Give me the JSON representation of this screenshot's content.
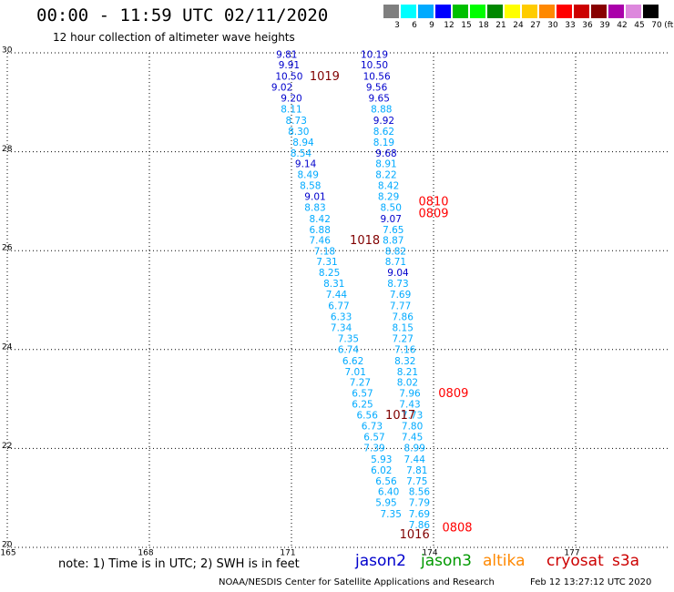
{
  "header": {
    "title": "00:00 - 11:59 UTC 02/11/2020",
    "subtitle": "12 hour collection of altimeter wave heights"
  },
  "legend": {
    "unit": "(ft)",
    "bins": [
      {
        "label": "3",
        "color": "#7f7f7f"
      },
      {
        "label": "6",
        "color": "#00ffff"
      },
      {
        "label": "9",
        "color": "#00aaff"
      },
      {
        "label": "12",
        "color": "#0000ff"
      },
      {
        "label": "15",
        "color": "#00c000"
      },
      {
        "label": "18",
        "color": "#00ff00"
      },
      {
        "label": "21",
        "color": "#008800"
      },
      {
        "label": "24",
        "color": "#ffff00"
      },
      {
        "label": "27",
        "color": "#ffcc00"
      },
      {
        "label": "30",
        "color": "#ff8800"
      },
      {
        "label": "33",
        "color": "#ff0000"
      },
      {
        "label": "36",
        "color": "#cc0000"
      },
      {
        "label": "39",
        "color": "#880000"
      },
      {
        "label": "42",
        "color": "#aa00aa"
      },
      {
        "label": "45",
        "color": "#dd88dd"
      },
      {
        "label": "70",
        "color": "#000000"
      }
    ]
  },
  "chart_data": {
    "type": "map",
    "lon_range": [
      165,
      179
    ],
    "lat_range": [
      20,
      30
    ],
    "lon_ticks": [
      165,
      168,
      171,
      174,
      177
    ],
    "lat_ticks": [
      30,
      28,
      26,
      24,
      22,
      20
    ],
    "tick_labels": {
      "lon": [
        "165",
        "168",
        "171",
        "174",
        "177"
      ],
      "lat": [
        "30",
        "28",
        "26",
        "24",
        "22",
        "20"
      ]
    },
    "grid": true,
    "colors": {
      "light": "#00aaff",
      "dark": "#0000cc",
      "time_dark": "#800000",
      "time_red": "#ff0000"
    },
    "track_left": [
      {
        "lon": 170.9,
        "lat": 29.95,
        "value": "9.81",
        "c": "dark"
      },
      {
        "lon": 170.95,
        "lat": 29.74,
        "value": "9.91",
        "c": "dark"
      },
      {
        "lon": 170.95,
        "lat": 29.51,
        "value": "10.50",
        "c": "dark"
      },
      {
        "lon": 170.8,
        "lat": 29.29,
        "value": "9.02",
        "c": "dark"
      },
      {
        "lon": 171.0,
        "lat": 29.07,
        "value": "9.20",
        "c": "dark"
      },
      {
        "lon": 171.0,
        "lat": 28.85,
        "value": "8.11",
        "c": "light"
      },
      {
        "lon": 171.1,
        "lat": 28.62,
        "value": "8.73",
        "c": "light"
      },
      {
        "lon": 171.15,
        "lat": 28.4,
        "value": "8.30",
        "c": "light"
      },
      {
        "lon": 171.25,
        "lat": 28.18,
        "value": "8.94",
        "c": "light"
      },
      {
        "lon": 171.2,
        "lat": 27.96,
        "value": "8.54",
        "c": "light"
      },
      {
        "lon": 171.3,
        "lat": 27.74,
        "value": "9.14",
        "c": "dark"
      },
      {
        "lon": 171.35,
        "lat": 27.52,
        "value": "8.49",
        "c": "light"
      },
      {
        "lon": 171.4,
        "lat": 27.3,
        "value": "8.58",
        "c": "light"
      },
      {
        "lon": 171.5,
        "lat": 27.08,
        "value": "9.01",
        "c": "dark"
      },
      {
        "lon": 171.5,
        "lat": 26.86,
        "value": "8.83",
        "c": "light"
      },
      {
        "lon": 171.6,
        "lat": 26.63,
        "value": "8.42",
        "c": "light"
      },
      {
        "lon": 171.6,
        "lat": 26.41,
        "value": "6.88",
        "c": "light"
      },
      {
        "lon": 171.6,
        "lat": 26.2,
        "value": "7.46",
        "c": "light"
      },
      {
        "lon": 171.7,
        "lat": 25.98,
        "value": "7.18",
        "c": "light"
      },
      {
        "lon": 171.75,
        "lat": 25.76,
        "value": "7.31",
        "c": "light"
      },
      {
        "lon": 171.8,
        "lat": 25.54,
        "value": "8.25",
        "c": "light"
      },
      {
        "lon": 171.9,
        "lat": 25.32,
        "value": "8.31",
        "c": "light"
      },
      {
        "lon": 171.95,
        "lat": 25.1,
        "value": "7.44",
        "c": "light"
      },
      {
        "lon": 172.0,
        "lat": 24.87,
        "value": "6.77",
        "c": "light"
      },
      {
        "lon": 172.05,
        "lat": 24.65,
        "value": "6.33",
        "c": "light"
      },
      {
        "lon": 172.05,
        "lat": 24.43,
        "value": "7.34",
        "c": "light"
      },
      {
        "lon": 172.2,
        "lat": 24.21,
        "value": "7.35",
        "c": "light"
      },
      {
        "lon": 172.2,
        "lat": 23.99,
        "value": "6.74",
        "c": "light"
      },
      {
        "lon": 172.3,
        "lat": 23.76,
        "value": "6.62",
        "c": "light"
      },
      {
        "lon": 172.35,
        "lat": 23.54,
        "value": "7.01",
        "c": "light"
      },
      {
        "lon": 172.45,
        "lat": 23.32,
        "value": "7.27",
        "c": "light"
      },
      {
        "lon": 172.5,
        "lat": 23.1,
        "value": "6.57",
        "c": "light"
      },
      {
        "lon": 172.5,
        "lat": 22.88,
        "value": "6.25",
        "c": "light"
      },
      {
        "lon": 172.6,
        "lat": 22.66,
        "value": "6.56",
        "c": "light"
      },
      {
        "lon": 172.7,
        "lat": 22.44,
        "value": "6.73",
        "c": "light"
      },
      {
        "lon": 172.75,
        "lat": 22.22,
        "value": "6.57",
        "c": "light"
      },
      {
        "lon": 172.75,
        "lat": 22.0,
        "value": "7.39",
        "c": "light"
      },
      {
        "lon": 172.9,
        "lat": 21.77,
        "value": "5.93",
        "c": "light"
      },
      {
        "lon": 172.9,
        "lat": 21.55,
        "value": "6.02",
        "c": "light"
      },
      {
        "lon": 173.0,
        "lat": 21.33,
        "value": "6.56",
        "c": "light"
      },
      {
        "lon": 173.05,
        "lat": 21.11,
        "value": "6.40",
        "c": "light"
      },
      {
        "lon": 173.0,
        "lat": 20.89,
        "value": "5.95",
        "c": "light"
      },
      {
        "lon": 173.1,
        "lat": 20.66,
        "value": "7.35",
        "c": "light"
      }
    ],
    "track_right": [
      {
        "lon": 172.75,
        "lat": 29.95,
        "value": "10.19",
        "c": "dark"
      },
      {
        "lon": 172.75,
        "lat": 29.74,
        "value": "10.50",
        "c": "dark"
      },
      {
        "lon": 172.8,
        "lat": 29.51,
        "value": "10.56",
        "c": "dark"
      },
      {
        "lon": 172.8,
        "lat": 29.29,
        "value": "9.56",
        "c": "dark"
      },
      {
        "lon": 172.85,
        "lat": 29.07,
        "value": "9.65",
        "c": "dark"
      },
      {
        "lon": 172.9,
        "lat": 28.85,
        "value": "8.88",
        "c": "light"
      },
      {
        "lon": 172.95,
        "lat": 28.62,
        "value": "9.92",
        "c": "dark"
      },
      {
        "lon": 172.95,
        "lat": 28.4,
        "value": "8.62",
        "c": "light"
      },
      {
        "lon": 172.95,
        "lat": 28.18,
        "value": "8.19",
        "c": "light"
      },
      {
        "lon": 173.0,
        "lat": 27.96,
        "value": "9.68",
        "c": "dark"
      },
      {
        "lon": 173.0,
        "lat": 27.74,
        "value": "8.91",
        "c": "light"
      },
      {
        "lon": 173.0,
        "lat": 27.52,
        "value": "8.22",
        "c": "light"
      },
      {
        "lon": 173.05,
        "lat": 27.3,
        "value": "8.42",
        "c": "light"
      },
      {
        "lon": 173.05,
        "lat": 27.08,
        "value": "8.29",
        "c": "light"
      },
      {
        "lon": 173.1,
        "lat": 26.86,
        "value": "8.50",
        "c": "light"
      },
      {
        "lon": 173.1,
        "lat": 26.63,
        "value": "9.07",
        "c": "dark"
      },
      {
        "lon": 173.15,
        "lat": 26.41,
        "value": "7.65",
        "c": "light"
      },
      {
        "lon": 173.15,
        "lat": 26.2,
        "value": "8.87",
        "c": "light"
      },
      {
        "lon": 173.2,
        "lat": 25.98,
        "value": "8.82",
        "c": "light"
      },
      {
        "lon": 173.2,
        "lat": 25.76,
        "value": "8.71",
        "c": "light"
      },
      {
        "lon": 173.25,
        "lat": 25.54,
        "value": "9.04",
        "c": "dark"
      },
      {
        "lon": 173.25,
        "lat": 25.32,
        "value": "8.73",
        "c": "light"
      },
      {
        "lon": 173.3,
        "lat": 25.1,
        "value": "7.69",
        "c": "light"
      },
      {
        "lon": 173.3,
        "lat": 24.87,
        "value": "7.77",
        "c": "light"
      },
      {
        "lon": 173.35,
        "lat": 24.65,
        "value": "7.86",
        "c": "light"
      },
      {
        "lon": 173.35,
        "lat": 24.43,
        "value": "8.15",
        "c": "light"
      },
      {
        "lon": 173.35,
        "lat": 24.21,
        "value": "7.27",
        "c": "light"
      },
      {
        "lon": 173.4,
        "lat": 23.99,
        "value": "7.16",
        "c": "light"
      },
      {
        "lon": 173.4,
        "lat": 23.76,
        "value": "8.32",
        "c": "light"
      },
      {
        "lon": 173.45,
        "lat": 23.54,
        "value": "8.21",
        "c": "light"
      },
      {
        "lon": 173.45,
        "lat": 23.32,
        "value": "8.02",
        "c": "light"
      },
      {
        "lon": 173.5,
        "lat": 23.1,
        "value": "7.96",
        "c": "light"
      },
      {
        "lon": 173.5,
        "lat": 22.88,
        "value": "7.43",
        "c": "light"
      },
      {
        "lon": 173.55,
        "lat": 22.66,
        "value": "7.73",
        "c": "light"
      },
      {
        "lon": 173.55,
        "lat": 22.44,
        "value": "7.80",
        "c": "light"
      },
      {
        "lon": 173.55,
        "lat": 22.22,
        "value": "7.45",
        "c": "light"
      },
      {
        "lon": 173.6,
        "lat": 22.0,
        "value": "8.99",
        "c": "light"
      },
      {
        "lon": 173.6,
        "lat": 21.77,
        "value": "7.44",
        "c": "light"
      },
      {
        "lon": 173.65,
        "lat": 21.55,
        "value": "7.81",
        "c": "light"
      },
      {
        "lon": 173.65,
        "lat": 21.33,
        "value": "7.75",
        "c": "light"
      },
      {
        "lon": 173.7,
        "lat": 21.11,
        "value": "8.56",
        "c": "light"
      },
      {
        "lon": 173.7,
        "lat": 20.89,
        "value": "7.79",
        "c": "light"
      },
      {
        "lon": 173.7,
        "lat": 20.66,
        "value": "7.69",
        "c": "light"
      },
      {
        "lon": 173.7,
        "lat": 20.44,
        "value": "7.86",
        "c": "light"
      }
    ],
    "time_labels": [
      {
        "lon": 171.7,
        "lat": 29.51,
        "value": "1019",
        "c": "time_dark"
      },
      {
        "lon": 172.55,
        "lat": 26.2,
        "value": "1018",
        "c": "time_dark"
      },
      {
        "lon": 173.3,
        "lat": 22.66,
        "value": "1017",
        "c": "time_dark"
      },
      {
        "lon": 173.6,
        "lat": 20.25,
        "value": "1016",
        "c": "time_dark"
      },
      {
        "lon": 174.0,
        "lat": 26.98,
        "value": "0810",
        "c": "time_red"
      },
      {
        "lon": 174.0,
        "lat": 26.74,
        "value": "0809",
        "c": "time_red"
      },
      {
        "lon": 174.42,
        "lat": 23.1,
        "value": "0809",
        "c": "time_red"
      },
      {
        "lon": 174.5,
        "lat": 20.39,
        "value": "0808",
        "c": "time_red"
      }
    ]
  },
  "footer": {
    "note": "note: 1) Time is in UTC; 2) SWH is in feet",
    "satellites": [
      {
        "name": "jason2",
        "color": "#0000cc"
      },
      {
        "name": "jason3",
        "color": "#009900"
      },
      {
        "name": "altika",
        "color": "#ff8800"
      },
      {
        "name": "cryosat",
        "color": "#cc0000"
      },
      {
        "name": "s3a",
        "color": "#cc0000"
      }
    ],
    "credit": "NOAA/NESDIS Center for Satellite Applications and Research",
    "timestamp": "Feb 12 13:27:12 UTC 2020"
  }
}
